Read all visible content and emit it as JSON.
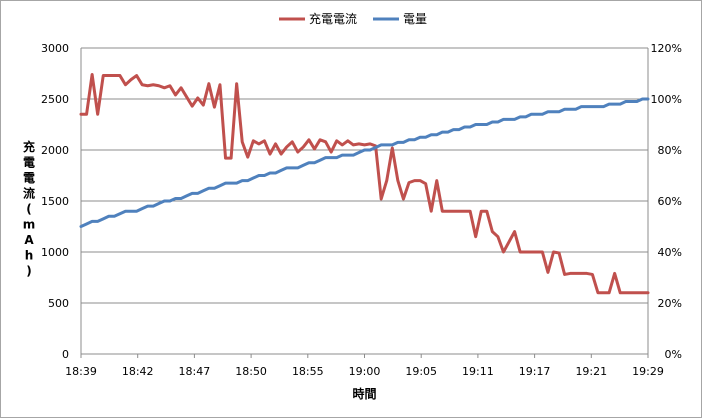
{
  "chart_data": {
    "type": "line",
    "xlabel": "時間",
    "ylabel": "充電電流(mAh)",
    "ylabel_chars": [
      "充",
      "電",
      "電",
      "流",
      "(",
      "m",
      "A",
      "h",
      ")"
    ],
    "y_left": {
      "min": 0,
      "max": 3000,
      "step": 500,
      "ticks": [
        "0",
        "500",
        "1000",
        "1500",
        "2000",
        "2500",
        "3000"
      ]
    },
    "y_right": {
      "min": 0,
      "max": 120,
      "step": 20,
      "ticks": [
        "0%",
        "20%",
        "40%",
        "60%",
        "80%",
        "100%",
        "120%"
      ]
    },
    "x_tick_labels": [
      "18:39",
      "18:42",
      "18:47",
      "18:50",
      "18:55",
      "19:00",
      "19:05",
      "19:11",
      "19:17",
      "19:21",
      "19:29"
    ],
    "grid": true,
    "legend_position": "top-center",
    "series": [
      {
        "name": "充電電流",
        "axis": "left",
        "color": "#c0504d",
        "values": [
          2350,
          2350,
          2740,
          2350,
          2730,
          2730,
          2730,
          2730,
          2640,
          2690,
          2730,
          2640,
          2630,
          2640,
          2630,
          2610,
          2630,
          2540,
          2610,
          2520,
          2430,
          2510,
          2440,
          2650,
          2420,
          2640,
          1920,
          1920,
          2650,
          2080,
          1930,
          2090,
          2060,
          2090,
          1960,
          2060,
          1960,
          2030,
          2080,
          1980,
          2030,
          2100,
          2010,
          2100,
          2080,
          1980,
          2090,
          2050,
          2090,
          2050,
          2060,
          2050,
          2060,
          2040,
          1520,
          1700,
          2020,
          1700,
          1520,
          1680,
          1700,
          1700,
          1670,
          1400,
          1700,
          1400,
          1400,
          1400,
          1400,
          1400,
          1400,
          1150,
          1400,
          1400,
          1200,
          1150,
          1000,
          1100,
          1200,
          1000,
          1000,
          1000,
          1000,
          1000,
          800,
          1000,
          990,
          780,
          790,
          790,
          790,
          790,
          780,
          600,
          600,
          600,
          790,
          600,
          600,
          600,
          600,
          600,
          600
        ]
      },
      {
        "name": "電量",
        "axis": "right",
        "color": "#4f81bd",
        "values": [
          50,
          51,
          52,
          52,
          53,
          54,
          54,
          55,
          56,
          56,
          56,
          57,
          58,
          58,
          59,
          60,
          60,
          61,
          61,
          62,
          63,
          63,
          64,
          65,
          65,
          66,
          67,
          67,
          67,
          68,
          68,
          69,
          70,
          70,
          71,
          71,
          72,
          73,
          73,
          73,
          74,
          75,
          75,
          76,
          77,
          77,
          77,
          78,
          78,
          78,
          79,
          80,
          80,
          81,
          82,
          82,
          82,
          83,
          83,
          84,
          84,
          85,
          85,
          86,
          86,
          87,
          87,
          88,
          88,
          89,
          89,
          90,
          90,
          90,
          91,
          91,
          92,
          92,
          92,
          93,
          93,
          94,
          94,
          94,
          95,
          95,
          95,
          96,
          96,
          96,
          97,
          97,
          97,
          97,
          97,
          98,
          98,
          98,
          99,
          99,
          99,
          100,
          100
        ]
      }
    ]
  }
}
